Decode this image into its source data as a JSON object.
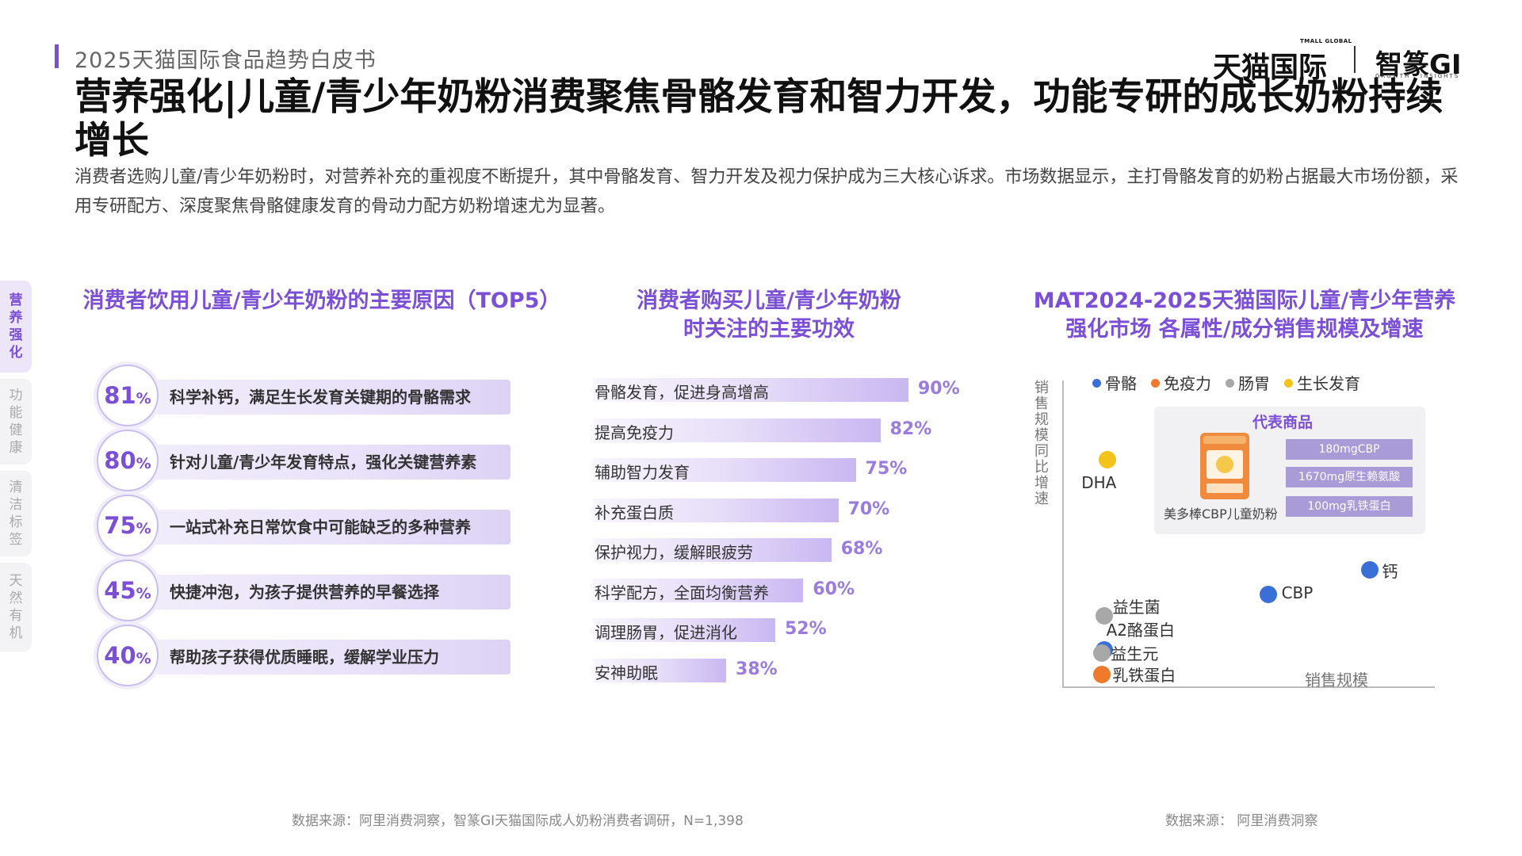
{
  "header": {
    "subtitle": "2025天猫国际食品趋势白皮书",
    "title": "营养强化|儿童/青少年奶粉消费聚焦骨骼发育和智力开发，功能专研的成长奶粉持续增长",
    "description": "消费者选购儿童/青少年奶粉时，对营养补充的重视度不断提升，其中骨骼发育、智力开发及视力保护成为三大核心诉求。市场数据显示，主打骨骼发育的奶粉占据最大市场份额，采用专研配方、深度聚焦骨骼健康发育的骨动力配方奶粉增速尤为显著。"
  },
  "brand": {
    "tmall_small": "TMALL GLOBAL",
    "tmall": "天猫国际",
    "gi": "智篆GI",
    "gi_small": "GROWTH · INSIGHTS"
  },
  "side_tabs": [
    {
      "label": "营养强化",
      "active": true
    },
    {
      "label": "功能健康",
      "active": false
    },
    {
      "label": "清洁标签",
      "active": false
    },
    {
      "label": "天然有机",
      "active": false
    }
  ],
  "colors": {
    "accent": "#7b4fd6",
    "bone": "#3a6fd8",
    "immunity": "#f07a2c",
    "gut": "#a8a8a8",
    "growth": "#f3c21b"
  },
  "chart_data": [
    {
      "type": "bar",
      "title": "消费者饮用儿童/青少年奶粉的主要原因（TOP5）",
      "unit": "%",
      "categories": [
        "科学补钙，满足生长发育关键期的骨骼需求",
        "针对儿童/青少年发育特点，强化关键营养素",
        "一站式补充日常饮食中可能缺乏的多种营养",
        "快捷冲泡，为孩子提供营养的早餐选择",
        "帮助孩子获得优质睡眠，缓解学业压力"
      ],
      "values": [
        81,
        80,
        75,
        45,
        40
      ]
    },
    {
      "type": "bar",
      "title": "消费者购买儿童/青少年奶粉时关注的主要功效",
      "title_lines": [
        "消费者购买儿童/青少年奶粉",
        "时关注的主要功效"
      ],
      "unit": "%",
      "categories": [
        "骨骼发育，促进身高增高",
        "提高免疫力",
        "辅助智力发育",
        "补充蛋白质",
        "保护视力，缓解眼疲劳",
        "科学配方，全面均衡营养",
        "调理肠胃，促进消化",
        "安神助眠"
      ],
      "values": [
        90,
        82,
        75,
        70,
        68,
        60,
        52,
        38
      ]
    },
    {
      "type": "scatter",
      "title": "MAT2024-2025天猫国际儿童/青少年营养强化市场 各属性/成分销售规模及增速",
      "title_lines": [
        "MAT2024-2025天猫国际儿童/青少年营养",
        "强化市场 各属性/成分销售规模及增速"
      ],
      "xlabel": "销售规模",
      "ylabel": "销售规模同比增速",
      "xlim": [
        0,
        10
      ],
      "ylim": [
        0,
        10
      ],
      "legend": [
        {
          "name": "骨骼",
          "color": "#3a6fd8"
        },
        {
          "name": "免疫力",
          "color": "#f07a2c"
        },
        {
          "name": "肠胃",
          "color": "#a8a8a8"
        },
        {
          "name": "生长发育",
          "color": "#f3c21b"
        }
      ],
      "points": [
        {
          "label": "DHA",
          "category": "生长发育",
          "x": 1.2,
          "y": 7.4
        },
        {
          "label": "钙",
          "category": "骨骼",
          "x": 8.4,
          "y": 3.8
        },
        {
          "label": "CBP",
          "category": "骨骼",
          "x": 5.6,
          "y": 3.0
        },
        {
          "label": "益生菌",
          "category": "肠胃",
          "x": 1.1,
          "y": 2.3
        },
        {
          "label": "A2酪蛋白",
          "category": "骨骼",
          "x": 1.1,
          "y": 1.2
        },
        {
          "label": "益生元",
          "category": "肠胃",
          "x": 1.05,
          "y": 1.1
        },
        {
          "label": "乳铁蛋白",
          "category": "免疫力",
          "x": 1.05,
          "y": 0.4
        }
      ],
      "annotation": {
        "title": "代表商品",
        "product": "美多棒CBP儿童奶粉",
        "tags": [
          "180mgCBP",
          "1670mg原生赖氨酸",
          "100mg乳铁蛋白"
        ]
      }
    }
  ],
  "sources": {
    "left": "数据来源：阿里消费洞察，智篆GI天猫国际成人奶粉消费者调研，N=1,398",
    "right": "数据来源： 阿里消费洞察"
  }
}
